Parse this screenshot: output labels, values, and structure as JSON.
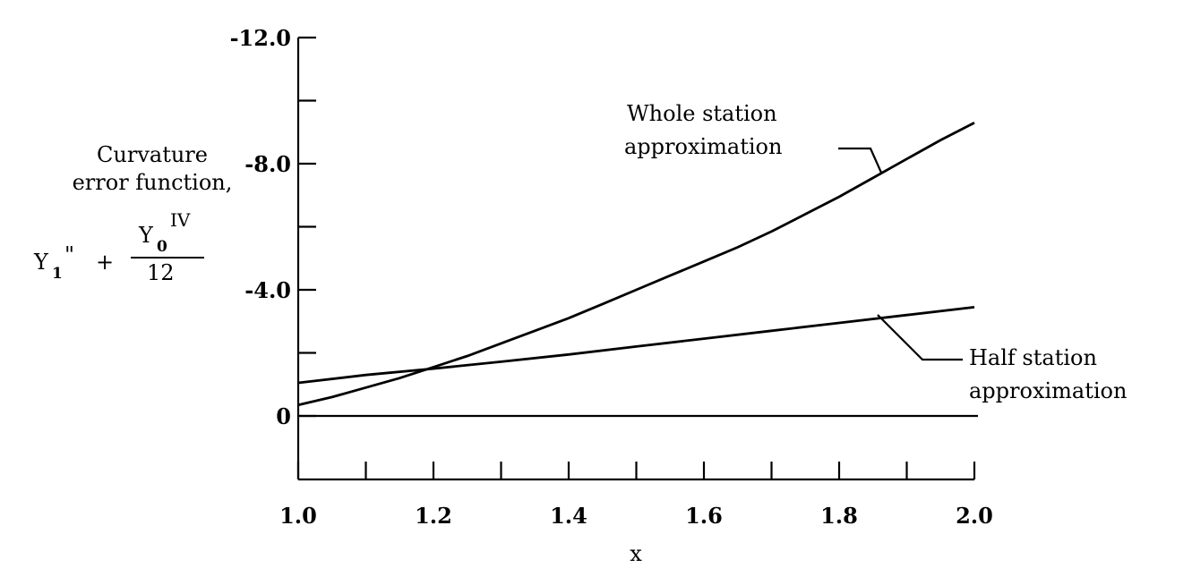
{
  "chart_data": {
    "type": "line",
    "xlabel": "x",
    "ylabel": {
      "line1": "Curvature",
      "line2": "error function,",
      "lhs": "Y",
      "lhs_sub": "1",
      "lhs_primes": "\"",
      "plus": "+",
      "numerator": "Y",
      "numerator_sub": "0",
      "numerator_sup": "IV",
      "denominator": "12"
    },
    "xlim": [
      1.0,
      2.0
    ],
    "ylim": [
      0,
      -12.0
    ],
    "y_reversed": true,
    "x_ticks": [
      1.0,
      1.1,
      1.2,
      1.3,
      1.4,
      1.5,
      1.6,
      1.7,
      1.8,
      1.9,
      2.0
    ],
    "x_tick_labels": [
      {
        "value": 1.0,
        "label": "1.0"
      },
      {
        "value": 1.2,
        "label": "1.2"
      },
      {
        "value": 1.4,
        "label": "1.4"
      },
      {
        "value": 1.6,
        "label": "1.6"
      },
      {
        "value": 1.8,
        "label": "1.8"
      },
      {
        "value": 2.0,
        "label": "2.0"
      }
    ],
    "y_ticks": [
      0,
      -2.0,
      -4.0,
      -6.0,
      -8.0,
      -10.0,
      -12.0
    ],
    "y_tick_labels": [
      {
        "value": 0,
        "label": "0"
      },
      {
        "value": -4.0,
        "label": "-4.0"
      },
      {
        "value": -8.0,
        "label": "-8.0"
      },
      {
        "value": -12.0,
        "label": "-12.0"
      }
    ],
    "grid": false,
    "series": [
      {
        "name": "Whole station approximation",
        "label_lines": [
          "Whole station",
          "approximation"
        ],
        "x": [
          1.0,
          1.05,
          1.1,
          1.15,
          1.2,
          1.25,
          1.3,
          1.35,
          1.4,
          1.45,
          1.5,
          1.55,
          1.6,
          1.65,
          1.7,
          1.75,
          1.8,
          1.85,
          1.9,
          1.95,
          2.0
        ],
        "y": [
          -0.35,
          -0.6,
          -0.9,
          -1.2,
          -1.55,
          -1.9,
          -2.3,
          -2.7,
          -3.1,
          -3.55,
          -4.0,
          -4.45,
          -4.9,
          -5.35,
          -5.85,
          -6.4,
          -6.95,
          -7.55,
          -8.15,
          -8.75,
          -9.3
        ]
      },
      {
        "name": "Half station approximation",
        "label_lines": [
          "Half station",
          "approximation"
        ],
        "x": [
          1.0,
          1.1,
          1.2,
          1.3,
          1.4,
          1.5,
          1.6,
          1.7,
          1.8,
          1.9,
          2.0
        ],
        "y": [
          -1.05,
          -1.3,
          -1.5,
          -1.72,
          -1.95,
          -2.2,
          -2.45,
          -2.7,
          -2.95,
          -3.2,
          -3.45
        ]
      }
    ]
  }
}
